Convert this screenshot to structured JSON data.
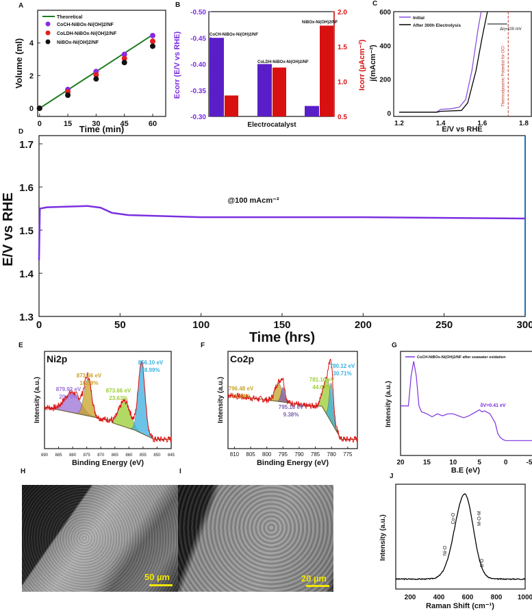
{
  "chart_data": [
    {
      "panel": "A",
      "type": "scatter",
      "xlabel": "Time (min)",
      "ylabel": "Volume (ml)",
      "xlim": [
        -1,
        64
      ],
      "ylim": [
        -0.5,
        6
      ],
      "xticks": [
        0,
        15,
        30,
        45,
        60
      ],
      "yticks": [
        0,
        2,
        4
      ],
      "legend_position": "top-left",
      "line": {
        "name": "Theoretical",
        "x": [
          0,
          60
        ],
        "y": [
          0,
          4.5
        ],
        "color": "#1f7a1f"
      },
      "series": [
        {
          "name": "CoCH-NiBOx-Ni(OH)2/NF",
          "x": [
            0,
            15,
            30,
            45,
            60
          ],
          "y": [
            0,
            1.15,
            2.25,
            3.3,
            4.45
          ],
          "color": "#8a2be2"
        },
        {
          "name": "CoLDH-NiBOx-Ni(OH)2/NF",
          "x": [
            0,
            15,
            30,
            45,
            60
          ],
          "y": [
            0,
            1.0,
            2.05,
            3.05,
            4.1
          ],
          "color": "#e02020"
        },
        {
          "name": "NiBOx-Ni(OH)2/NF",
          "x": [
            0,
            15,
            30,
            45,
            60
          ],
          "y": [
            0,
            0.8,
            1.8,
            2.8,
            3.8
          ],
          "color": "#111111"
        }
      ]
    },
    {
      "panel": "B",
      "type": "bar",
      "xlabel": "Electrocatalyst",
      "ylabel_left": "Ecorr (E/V vs RHE)",
      "ylabel_right": "Icorr (µAcm⁻²)",
      "ylim_left": [
        -0.3,
        -0.5
      ],
      "ylim_right": [
        0.5,
        2.0
      ],
      "yticks_left": [
        "-0.50",
        "-0.45",
        "-0.40",
        "-0.35",
        "-0.30"
      ],
      "yticks_right": [
        "2.0",
        "1.5",
        "1.0",
        "0.5"
      ],
      "categories": [
        "CoCH-NiBOx-Ni(OH)2/NF",
        "CoLDH-NiBOx-Ni(OH)2/NF",
        "NiBOx-Ni(OH)2/NF"
      ],
      "series": [
        {
          "name": "Ecorr",
          "values": [
            -0.45,
            -0.4,
            -0.32
          ],
          "color": "#5a1ec8"
        },
        {
          "name": "Icorr",
          "values": [
            0.8,
            1.2,
            1.8
          ],
          "color": "#d81010"
        }
      ]
    },
    {
      "panel": "C",
      "type": "line",
      "xlabel": "E/V vs RHE",
      "ylabel": "j(mAcm⁻²)",
      "xlim": [
        1.2,
        1.8
      ],
      "ylim": [
        0,
        600
      ],
      "xticks": [
        "1.2",
        "1.4",
        "1.6",
        "1.8"
      ],
      "yticks": [
        "0",
        "200",
        "400",
        "600"
      ],
      "series": [
        {
          "name": "Initial",
          "color": "#8a4fe0",
          "x": [
            1.2,
            1.38,
            1.4,
            1.45,
            1.49,
            1.52,
            1.55,
            1.58,
            1.595
          ],
          "y": [
            5,
            5,
            22,
            25,
            35,
            80,
            250,
            500,
            600
          ]
        },
        {
          "name": "After 300h Electrolysis",
          "color": "#000000",
          "x": [
            1.2,
            1.38,
            1.4,
            1.5,
            1.53,
            1.57,
            1.6,
            1.625
          ],
          "y": [
            5,
            5,
            10,
            15,
            60,
            250,
            450,
            600
          ]
        }
      ],
      "vline": {
        "x": 1.725,
        "label": "Thermodynamic Potential for OCl⁻",
        "color": "#c0392b"
      },
      "annotation": "Δη=100  mV"
    },
    {
      "panel": "D",
      "type": "line",
      "xlabel": "Time (hrs)",
      "ylabel": "E/V vs RHE",
      "xlim": [
        0,
        300
      ],
      "ylim": [
        1.3,
        1.7
      ],
      "xticks": [
        "0",
        "50",
        "100",
        "150",
        "200",
        "250",
        "300"
      ],
      "yticks": [
        "1.3",
        "1.4",
        "1.5",
        "1.6",
        "1.7"
      ],
      "annotation": "@100 mAcm⁻²",
      "series": [
        {
          "color": "#7b2fe0",
          "x": [
            0,
            0.5,
            5,
            30,
            38,
            45,
            55,
            100,
            200,
            300
          ],
          "y": [
            1.43,
            1.55,
            1.553,
            1.556,
            1.552,
            1.54,
            1.535,
            1.53,
            1.53,
            1.527
          ]
        }
      ]
    },
    {
      "panel": "E",
      "type": "line",
      "title": "Ni2p",
      "xlabel": "Binding Energy (eV)",
      "ylabel": "Intensity (a.u.)",
      "xlim": [
        890,
        845
      ],
      "xticks": [
        "890",
        "885",
        "880",
        "875",
        "870",
        "865",
        "860",
        "855",
        "850",
        "845"
      ],
      "peaks": [
        {
          "energy": "879.92 eV",
          "percent": "20.79%",
          "center": 880,
          "height": 0.22,
          "width": 2.8,
          "color": "#9b6fd6"
        },
        {
          "energy": "873.66 eV",
          "percent": "16.59%",
          "center": 874.6,
          "height": 0.4,
          "width": 1.3,
          "color": "#c9a227"
        },
        {
          "energy": "873.66 eV",
          "percent": "23.63%",
          "center": 861.5,
          "height": 0.28,
          "width": 2.0,
          "color": "#9acd32"
        },
        {
          "energy": "856.10 eV",
          "percent": "38.99%",
          "center": 855.5,
          "height": 0.78,
          "width": 1.2,
          "color": "#3ab0e0"
        }
      ]
    },
    {
      "panel": "F",
      "type": "line",
      "title": "Co2p",
      "xlabel": "Binding Energy (eV)",
      "ylabel": "Intensity (a.u.)",
      "xlim": [
        812,
        772
      ],
      "xticks": [
        "810",
        "805",
        "800",
        "795",
        "790",
        "785",
        "780",
        "775"
      ],
      "peaks": [
        {
          "energy": "796.48 eV",
          "percent": "15.84%",
          "center": 796.4,
          "height": 0.2,
          "width": 1.1,
          "color": "#c9a227"
        },
        {
          "energy": "795.16 eV",
          "percent": "9.38%",
          "center": 795.0,
          "height": 0.16,
          "width": 0.6,
          "color": "#7b5fb0"
        },
        {
          "energy": "781.10 eV",
          "percent": "44.07%",
          "center": 781.3,
          "height": 0.4,
          "width": 1.2,
          "color": "#9acd32"
        },
        {
          "energy": "780.12 eV",
          "percent": "30.71%",
          "center": 780.1,
          "height": 0.42,
          "width": 0.6,
          "color": "#3ab0e0"
        }
      ]
    },
    {
      "panel": "G",
      "type": "line",
      "xlabel": "B.E (eV)",
      "ylabel": "Intensity (a.u.)",
      "xlim": [
        20,
        -5
      ],
      "xticks": [
        "20",
        "15",
        "10",
        "5",
        "0",
        "-5"
      ],
      "annotation": "δV=0.41 eV",
      "series": [
        {
          "name": "CoCH-NiBOx-Ni(OH)2/NF after seawater oxidation",
          "color": "#7b2fe0",
          "x": [
            20,
            18.5,
            18,
            17.5,
            17,
            16.5,
            16,
            15,
            14,
            13,
            12,
            11,
            10,
            9,
            8,
            7,
            6,
            5,
            4.5,
            4,
            3,
            2,
            1.5,
            1,
            0.5,
            0,
            -1,
            -5
          ],
          "y": [
            0.5,
            0.5,
            0.8,
            0.95,
            0.8,
            0.5,
            0.44,
            0.42,
            0.39,
            0.42,
            0.4,
            0.42,
            0.42,
            0.4,
            0.38,
            0.4,
            0.43,
            0.46,
            0.44,
            0.45,
            0.42,
            0.33,
            0.22,
            0.18,
            0.16,
            0.15,
            0.15,
            0.15
          ]
        }
      ]
    },
    {
      "panel": "J",
      "type": "line",
      "xlabel": "Raman Shift (cm⁻¹)",
      "ylabel": "Intensity (a.u.)",
      "xlim": [
        100,
        1000
      ],
      "xticks": [
        "200",
        "400",
        "600",
        "800",
        "1000"
      ],
      "annotations": [
        "Ni-O",
        "Co-O",
        "M-O-M",
        "B-O"
      ],
      "series": [
        {
          "color": "#000000",
          "center": 580,
          "width": 70
        }
      ]
    }
  ],
  "panel_labels": [
    "A",
    "B",
    "C",
    "D",
    "E",
    "F",
    "G",
    "H",
    "I",
    "J"
  ],
  "images": {
    "H": {
      "scale_bar": "50 µm"
    },
    "I": {
      "scale_bar": "20 µm"
    }
  }
}
